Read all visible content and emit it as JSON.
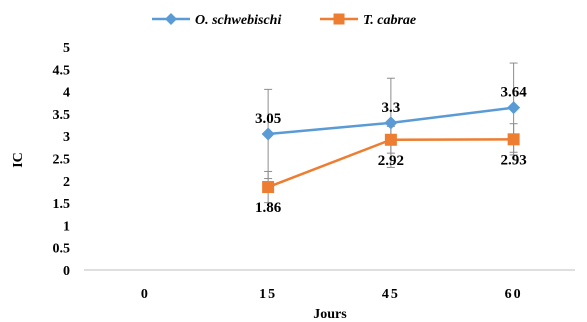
{
  "chart_data": {
    "type": "line",
    "xlabel": "Jours",
    "ylabel": "IC",
    "categories": [
      "0",
      "15",
      "45",
      "60"
    ],
    "ylim": [
      0,
      5
    ],
    "ytick_step": 0.5,
    "y_tick_labels": [
      "0",
      "0.5",
      "1",
      "1.5",
      "2",
      "2.5",
      "3",
      "3.5",
      "4",
      "4.5",
      "5"
    ],
    "grid": false,
    "legend": "top",
    "series": [
      {
        "name": "O. schwebischi",
        "color": "#5b9bd5",
        "marker": "diamond",
        "values": [
          null,
          3.05,
          3.3,
          3.64
        ],
        "labels": [
          null,
          "3.05",
          "3.3",
          "3.64"
        ],
        "error": [
          null,
          1.0,
          1.0,
          1.0
        ],
        "label_position": "above"
      },
      {
        "name": "T. cabrae",
        "color": "#ed7d31",
        "marker": "square",
        "values": [
          null,
          1.86,
          2.92,
          2.93
        ],
        "labels": [
          null,
          "1.86",
          "2.92",
          "2.93"
        ],
        "error": [
          null,
          0.35,
          0.3,
          0.35
        ],
        "label_position": "below"
      }
    ]
  }
}
